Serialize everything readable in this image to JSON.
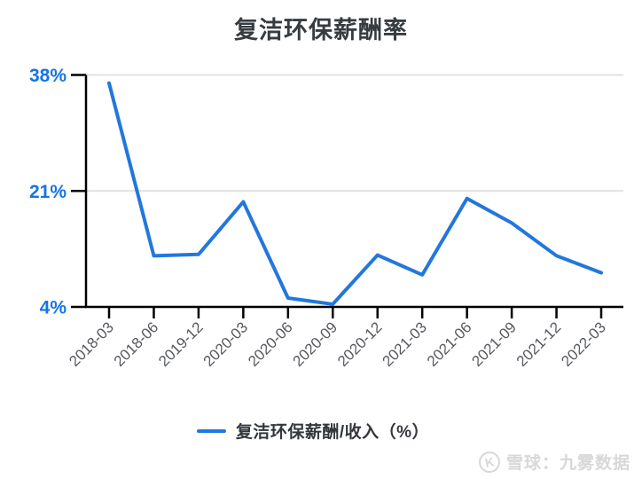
{
  "title": "复洁环保薪酬率",
  "chart_data": {
    "type": "line",
    "title": "复洁环保薪酬率",
    "categories": [
      "2018-03",
      "2018-06",
      "2019-12",
      "2020-03",
      "2020-06",
      "2020-09",
      "2020-12",
      "2021-03",
      "2021-06",
      "2021-09",
      "2021-12",
      "2022-03"
    ],
    "series": [
      {
        "name": "复洁环保薪酬/收入（%）",
        "values": [
          36.8,
          11.5,
          11.7,
          19.4,
          5.3,
          4.4,
          11.6,
          8.7,
          19.9,
          16.3,
          11.5,
          9.0
        ]
      }
    ],
    "xlabel": "",
    "ylabel": "",
    "ylim": [
      4,
      38
    ],
    "ytick_values": [
      38,
      21,
      4
    ],
    "ytick_labels": [
      "38%",
      "21%",
      "4%"
    ],
    "grid": true,
    "grid_lines_at": [
      38,
      21
    ],
    "legend_position": "bottom",
    "line_color": "#2277dd"
  },
  "legend": {
    "label": "复洁环保薪酬/收入（%）"
  },
  "watermark": {
    "logo_icon": "xueqiu-circle-icon",
    "logo_glyph": "K",
    "text": "雪球：九雾数据"
  },
  "colors": {
    "line": "#2277dd",
    "y_tick_label": "#1574e4",
    "x_tick_label": "#56595e",
    "axis": "#000000",
    "grid": "#e2e2e2",
    "title": "#373c41",
    "legend_text": "#33373c",
    "watermark": "#d8d8d8",
    "background": "#ffffff"
  }
}
